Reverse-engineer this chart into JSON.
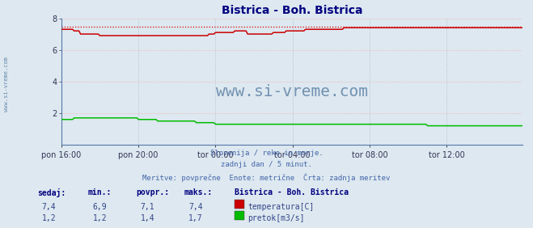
{
  "title": "Bistrica - Boh. Bistrica",
  "title_color": "#000080",
  "bg_color": "#dde8f0",
  "plot_bg_color": "#dde8f0",
  "grid_color_h": "#ffaaaa",
  "grid_color_v": "#aabbcc",
  "xlim": [
    0,
    287
  ],
  "ylim": [
    0,
    8
  ],
  "yticks": [
    2,
    4,
    6,
    8
  ],
  "xtick_labels": [
    "pon 16:00",
    "pon 20:00",
    "tor 00:00",
    "tor 04:00",
    "tor 08:00",
    "tor 12:00"
  ],
  "xtick_positions": [
    0,
    48,
    96,
    144,
    192,
    240
  ],
  "temp_color": "#cc0000",
  "flow_color": "#00bb00",
  "max_line_color": "#dd0000",
  "watermark_color": "#6688aa",
  "watermark_text": "www.si-vreme.com",
  "sidebar_text": "www.si-vreme.com",
  "subtitle_lines": [
    "Slovenija / reke in morje.",
    "zadnji dan / 5 minut.",
    "Meritve: povprečne  Enote: metrične  Črta: zadnja meritev"
  ],
  "subtitle_color": "#4466aa",
  "table_header_color": "#000080",
  "table_text_color": "#334488",
  "table_headers": [
    "sedaj:",
    "min.:",
    "povpr.:",
    "maks.:"
  ],
  "table_rows": [
    {
      "values": [
        "7,4",
        "6,9",
        "7,1",
        "7,4"
      ],
      "color": "#cc0000",
      "label": "temperatura[C]"
    },
    {
      "values": [
        "1,2",
        "1,2",
        "1,4",
        "1,7"
      ],
      "color": "#00bb00",
      "label": "pretok[m3/s]"
    }
  ],
  "station_label": "Bistrica - Boh. Bistrica",
  "temp_max_line_y": 7.45,
  "temp_data_approx": [
    7.3,
    7.3,
    7.3,
    7.3,
    7.3,
    7.3,
    7.3,
    7.3,
    7.2,
    7.2,
    7.2,
    7.2,
    7.0,
    7.0,
    7.0,
    7.0,
    7.0,
    7.0,
    7.0,
    7.0,
    7.0,
    7.0,
    7.0,
    7.0,
    6.9,
    6.9,
    6.9,
    6.9,
    6.9,
    6.9,
    6.9,
    6.9,
    6.9,
    6.9,
    6.9,
    6.9,
    6.9,
    6.9,
    6.9,
    6.9,
    6.9,
    6.9,
    6.9,
    6.9,
    6.9,
    6.9,
    6.9,
    6.9,
    6.9,
    6.9,
    6.9,
    6.9,
    6.9,
    6.9,
    6.9,
    6.9,
    6.9,
    6.9,
    6.9,
    6.9,
    6.9,
    6.9,
    6.9,
    6.9,
    6.9,
    6.9,
    6.9,
    6.9,
    6.9,
    6.9,
    6.9,
    6.9,
    6.9,
    6.9,
    6.9,
    6.9,
    6.9,
    6.9,
    6.9,
    6.9,
    6.9,
    6.9,
    6.9,
    6.9,
    6.9,
    6.9,
    6.9,
    6.9,
    6.9,
    6.9,
    6.9,
    6.9,
    7.0,
    7.0,
    7.0,
    7.0,
    7.1,
    7.1,
    7.1,
    7.1,
    7.1,
    7.1,
    7.1,
    7.1,
    7.1,
    7.1,
    7.1,
    7.1,
    7.2,
    7.2,
    7.2,
    7.2,
    7.2,
    7.2,
    7.2,
    7.2,
    7.0,
    7.0,
    7.0,
    7.0,
    7.0,
    7.0,
    7.0,
    7.0,
    7.0,
    7.0,
    7.0,
    7.0,
    7.0,
    7.0,
    7.0,
    7.0,
    7.1,
    7.1,
    7.1,
    7.1,
    7.1,
    7.1,
    7.1,
    7.1,
    7.2,
    7.2,
    7.2,
    7.2,
    7.2,
    7.2,
    7.2,
    7.2,
    7.2,
    7.2,
    7.2,
    7.2,
    7.3,
    7.3,
    7.3,
    7.3,
    7.3,
    7.3,
    7.3,
    7.3,
    7.3,
    7.3,
    7.3,
    7.3,
    7.3,
    7.3,
    7.3,
    7.3,
    7.3,
    7.3,
    7.3,
    7.3,
    7.3,
    7.3,
    7.3,
    7.3,
    7.4,
    7.4,
    7.4,
    7.4,
    7.4,
    7.4,
    7.4,
    7.4,
    7.4,
    7.4,
    7.4,
    7.4,
    7.4,
    7.4,
    7.4,
    7.4,
    7.4,
    7.4,
    7.4,
    7.4,
    7.4,
    7.4,
    7.4,
    7.4,
    7.4,
    7.4,
    7.4,
    7.4,
    7.4,
    7.4,
    7.4,
    7.4,
    7.4,
    7.4,
    7.4,
    7.4,
    7.4,
    7.4,
    7.4,
    7.4,
    7.4,
    7.4,
    7.4,
    7.4,
    7.4,
    7.4,
    7.4,
    7.4,
    7.4,
    7.4,
    7.4,
    7.4,
    7.4,
    7.4,
    7.4,
    7.4,
    7.4,
    7.4,
    7.4,
    7.4,
    7.4,
    7.4,
    7.4,
    7.4,
    7.4,
    7.4,
    7.4,
    7.4,
    7.4,
    7.4,
    7.4,
    7.4,
    7.4,
    7.4,
    7.4,
    7.4,
    7.4,
    7.4,
    7.4,
    7.4,
    7.4,
    7.4,
    7.4,
    7.4,
    7.4,
    7.4,
    7.4,
    7.4,
    7.4,
    7.4,
    7.4,
    7.4,
    7.4,
    7.4,
    7.4,
    7.4,
    7.4,
    7.4,
    7.4,
    7.4,
    7.4,
    7.4,
    7.4,
    7.4,
    7.4,
    7.4,
    7.4,
    7.4,
    7.4,
    7.4,
    7.4,
    7.4
  ],
  "flow_data_approx": [
    1.6,
    1.6,
    1.6,
    1.6,
    1.6,
    1.6,
    1.6,
    1.6,
    1.7,
    1.7,
    1.7,
    1.7,
    1.7,
    1.7,
    1.7,
    1.7,
    1.7,
    1.7,
    1.7,
    1.7,
    1.7,
    1.7,
    1.7,
    1.7,
    1.7,
    1.7,
    1.7,
    1.7,
    1.7,
    1.7,
    1.7,
    1.7,
    1.7,
    1.7,
    1.7,
    1.7,
    1.7,
    1.7,
    1.7,
    1.7,
    1.7,
    1.7,
    1.7,
    1.7,
    1.7,
    1.7,
    1.7,
    1.7,
    1.6,
    1.6,
    1.6,
    1.6,
    1.6,
    1.6,
    1.6,
    1.6,
    1.6,
    1.6,
    1.6,
    1.6,
    1.5,
    1.5,
    1.5,
    1.5,
    1.5,
    1.5,
    1.5,
    1.5,
    1.5,
    1.5,
    1.5,
    1.5,
    1.5,
    1.5,
    1.5,
    1.5,
    1.5,
    1.5,
    1.5,
    1.5,
    1.5,
    1.5,
    1.5,
    1.5,
    1.4,
    1.4,
    1.4,
    1.4,
    1.4,
    1.4,
    1.4,
    1.4,
    1.4,
    1.4,
    1.4,
    1.4,
    1.3,
    1.3,
    1.3,
    1.3,
    1.3,
    1.3,
    1.3,
    1.3,
    1.3,
    1.3,
    1.3,
    1.3,
    1.3,
    1.3,
    1.3,
    1.3,
    1.3,
    1.3,
    1.3,
    1.3,
    1.3,
    1.3,
    1.3,
    1.3,
    1.3,
    1.3,
    1.3,
    1.3,
    1.3,
    1.3,
    1.3,
    1.3,
    1.3,
    1.3,
    1.3,
    1.3,
    1.3,
    1.3,
    1.3,
    1.3,
    1.3,
    1.3,
    1.3,
    1.3,
    1.3,
    1.3,
    1.3,
    1.3,
    1.3,
    1.3,
    1.3,
    1.3,
    1.3,
    1.3,
    1.3,
    1.3,
    1.3,
    1.3,
    1.3,
    1.3,
    1.3,
    1.3,
    1.3,
    1.3,
    1.3,
    1.3,
    1.3,
    1.3,
    1.3,
    1.3,
    1.3,
    1.3,
    1.3,
    1.3,
    1.3,
    1.3,
    1.3,
    1.3,
    1.3,
    1.3,
    1.3,
    1.3,
    1.3,
    1.3,
    1.3,
    1.3,
    1.3,
    1.3,
    1.3,
    1.3,
    1.3,
    1.3,
    1.3,
    1.3,
    1.3,
    1.3,
    1.3,
    1.3,
    1.3,
    1.3,
    1.3,
    1.3,
    1.3,
    1.3,
    1.3,
    1.3,
    1.3,
    1.3,
    1.3,
    1.3,
    1.3,
    1.3,
    1.3,
    1.3,
    1.3,
    1.3,
    1.3,
    1.3,
    1.3,
    1.3,
    1.3,
    1.3,
    1.3,
    1.3,
    1.3,
    1.3,
    1.3,
    1.3,
    1.3,
    1.3,
    1.3,
    1.3,
    1.2,
    1.2,
    1.2,
    1.2,
    1.2,
    1.2,
    1.2,
    1.2,
    1.2,
    1.2,
    1.2,
    1.2,
    1.2,
    1.2,
    1.2,
    1.2,
    1.2,
    1.2,
    1.2,
    1.2,
    1.2,
    1.2,
    1.2,
    1.2,
    1.2,
    1.2,
    1.2,
    1.2,
    1.2,
    1.2,
    1.2,
    1.2,
    1.2,
    1.2,
    1.2,
    1.2,
    1.2,
    1.2,
    1.2,
    1.2,
    1.2,
    1.2,
    1.2,
    1.2,
    1.2,
    1.2,
    1.2,
    1.2,
    1.2,
    1.2,
    1.2,
    1.2,
    1.2,
    1.2,
    1.2,
    1.2,
    1.2,
    1.2,
    1.2,
    1.2
  ]
}
